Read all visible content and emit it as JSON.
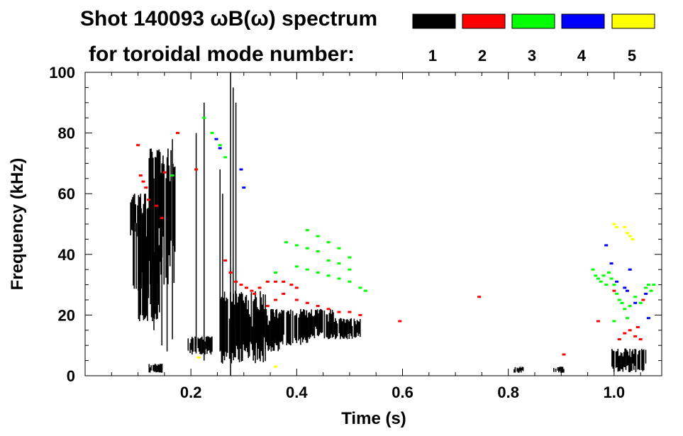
{
  "figure": {
    "title_line1": "Shot 140093 ωB(ω) spectrum",
    "title_line2": "for toroidal mode number:"
  },
  "colors": {
    "n1": "#000000",
    "n2": "#ff0000",
    "n3": "#00ff00",
    "n4": "#0000ff",
    "n5": "#ffff00",
    "axis": "#000000",
    "background": "#ffffff"
  },
  "chart_data": {
    "type": "heatmap",
    "title": "Shot 140093 ωB(ω) spectrum for toroidal mode number:",
    "xlabel": "Time (s)",
    "ylabel": "Frequency (kHz)",
    "xlim": [
      0.0,
      1.09
    ],
    "ylim": [
      0,
      100
    ],
    "xticks": [
      0.2,
      0.4,
      0.6,
      0.8,
      1.0
    ],
    "xtick_labels": [
      "0.2",
      "0.4",
      "0.6",
      "0.8",
      "1.0"
    ],
    "yticks": [
      0,
      20,
      40,
      60,
      80,
      100
    ],
    "ytick_labels": [
      "0",
      "20",
      "40",
      "60",
      "80",
      "100"
    ],
    "grid": false,
    "legend_position": "top-right",
    "legend": [
      {
        "label": "1",
        "color": "#000000"
      },
      {
        "label": "2",
        "color": "#ff0000"
      },
      {
        "label": "3",
        "color": "#00ff00"
      },
      {
        "label": "4",
        "color": "#0000ff"
      },
      {
        "label": "5",
        "color": "#ffff00"
      }
    ],
    "series": [
      {
        "name": "1",
        "color": "#000000",
        "blobs": [
          {
            "t": [
              0.085,
              0.115
            ],
            "f": [
              44,
              60
            ]
          },
          {
            "t": [
              0.09,
              0.12
            ],
            "f": [
              28,
              56
            ]
          },
          {
            "t": [
              0.1,
              0.14
            ],
            "f": [
              18,
              48
            ]
          },
          {
            "t": [
              0.12,
              0.17
            ],
            "f": [
              30,
              75
            ]
          },
          {
            "t": [
              0.19,
              0.24
            ],
            "f": [
              7,
              13
            ]
          },
          {
            "t": [
              0.255,
              0.34
            ],
            "f": [
              4,
              28
            ]
          },
          {
            "t": [
              0.3,
              0.37
            ],
            "f": [
              8,
              22
            ]
          },
          {
            "t": [
              0.35,
              0.42
            ],
            "f": [
              10,
              22
            ]
          },
          {
            "t": [
              0.41,
              0.47
            ],
            "f": [
              12,
              22
            ]
          },
          {
            "t": [
              0.47,
              0.52
            ],
            "f": [
              12,
              19
            ]
          },
          {
            "t": [
              0.12,
              0.145
            ],
            "f": [
              1,
              4
            ]
          },
          {
            "t": [
              0.81,
              0.83
            ],
            "f": [
              1,
              3
            ]
          },
          {
            "t": [
              0.885,
              0.905
            ],
            "f": [
              1,
              3
            ]
          },
          {
            "t": [
              0.995,
              1.06
            ],
            "f": [
              1,
              9
            ]
          }
        ],
        "lines": [
          {
            "t": 0.275,
            "f": [
              0,
              100
            ]
          },
          {
            "t": 0.28,
            "f": [
              10,
              95
            ]
          },
          {
            "t": 0.285,
            "f": [
              15,
              90
            ]
          },
          {
            "t": 0.21,
            "f": [
              10,
              80
            ]
          },
          {
            "t": 0.225,
            "f": [
              5,
              90
            ]
          },
          {
            "t": 0.255,
            "f": [
              8,
              68
            ]
          },
          {
            "t": 0.26,
            "f": [
              10,
              60
            ]
          },
          {
            "t": 0.145,
            "f": [
              10,
              70
            ]
          },
          {
            "t": 0.155,
            "f": [
              8,
              72
            ]
          },
          {
            "t": 0.165,
            "f": [
              12,
              78
            ]
          },
          {
            "t": 0.13,
            "f": [
              15,
              65
            ]
          },
          {
            "t": 0.105,
            "f": [
              20,
              60
            ]
          }
        ]
      },
      {
        "name": "2",
        "color": "#ff0000",
        "points": [
          [
            0.1,
            76
          ],
          [
            0.105,
            66
          ],
          [
            0.11,
            64
          ],
          [
            0.115,
            62
          ],
          [
            0.12,
            58
          ],
          [
            0.135,
            56
          ],
          [
            0.15,
            67
          ],
          [
            0.145,
            52
          ],
          [
            0.175,
            80
          ],
          [
            0.21,
            68
          ],
          [
            0.265,
            38
          ],
          [
            0.275,
            34
          ],
          [
            0.285,
            31
          ],
          [
            0.295,
            30
          ],
          [
            0.305,
            29
          ],
          [
            0.315,
            28
          ],
          [
            0.32,
            27
          ],
          [
            0.33,
            29
          ],
          [
            0.345,
            31
          ],
          [
            0.36,
            31
          ],
          [
            0.375,
            31
          ],
          [
            0.39,
            30
          ],
          [
            0.4,
            29
          ],
          [
            0.345,
            23
          ],
          [
            0.36,
            25
          ],
          [
            0.375,
            27
          ],
          [
            0.4,
            25
          ],
          [
            0.42,
            24
          ],
          [
            0.44,
            23
          ],
          [
            0.46,
            22
          ],
          [
            0.48,
            21
          ],
          [
            0.5,
            21
          ],
          [
            0.52,
            20
          ],
          [
            0.595,
            18
          ],
          [
            0.745,
            26
          ],
          [
            0.905,
            7
          ],
          [
            0.97,
            18
          ],
          [
            1.01,
            12
          ],
          [
            1.02,
            14
          ],
          [
            1.03,
            15
          ],
          [
            1.04,
            13
          ],
          [
            1.045,
            16
          ],
          [
            1.05,
            12
          ],
          [
            1.0,
            28
          ],
          [
            1.055,
            25
          ]
        ]
      },
      {
        "name": "3",
        "color": "#00ff00",
        "points": [
          [
            0.165,
            66
          ],
          [
            0.225,
            85
          ],
          [
            0.24,
            80
          ],
          [
            0.255,
            76
          ],
          [
            0.265,
            72
          ],
          [
            0.38,
            44
          ],
          [
            0.4,
            43
          ],
          [
            0.42,
            42
          ],
          [
            0.44,
            41
          ],
          [
            0.46,
            38
          ],
          [
            0.48,
            37
          ],
          [
            0.5,
            35
          ],
          [
            0.42,
            48
          ],
          [
            0.44,
            46
          ],
          [
            0.46,
            44
          ],
          [
            0.48,
            42
          ],
          [
            0.5,
            39
          ],
          [
            0.4,
            36
          ],
          [
            0.42,
            35
          ],
          [
            0.44,
            34
          ],
          [
            0.46,
            33
          ],
          [
            0.48,
            32
          ],
          [
            0.5,
            31
          ],
          [
            0.52,
            29
          ],
          [
            0.36,
            34
          ],
          [
            0.53,
            28
          ],
          [
            0.96,
            35
          ],
          [
            0.965,
            33
          ],
          [
            0.97,
            32
          ],
          [
            0.975,
            31
          ],
          [
            0.98,
            33
          ],
          [
            0.985,
            30
          ],
          [
            0.99,
            34
          ],
          [
            0.995,
            32
          ],
          [
            1.0,
            30
          ],
          [
            1.005,
            27
          ],
          [
            1.01,
            25
          ],
          [
            1.015,
            24
          ],
          [
            1.02,
            22
          ],
          [
            1.03,
            23
          ],
          [
            1.04,
            26
          ],
          [
            1.05,
            24
          ],
          [
            1.06,
            29
          ],
          [
            1.065,
            30
          ],
          [
            1.07,
            28
          ],
          [
            1.075,
            30
          ],
          [
            1.0,
            18
          ],
          [
            1.025,
            19
          ]
        ]
      },
      {
        "name": "4",
        "color": "#0000ff",
        "points": [
          [
            0.248,
            78
          ],
          [
            0.255,
            75
          ],
          [
            0.295,
            68
          ],
          [
            0.3,
            62
          ],
          [
            0.985,
            43
          ],
          [
            0.995,
            37
          ],
          [
            1.005,
            31
          ],
          [
            1.02,
            29
          ],
          [
            1.025,
            28
          ],
          [
            1.03,
            35
          ],
          [
            1.04,
            24
          ],
          [
            1.06,
            27
          ],
          [
            1.065,
            19
          ]
        ]
      },
      {
        "name": "5",
        "color": "#ffff00",
        "points": [
          [
            1.0,
            50
          ],
          [
            1.005,
            49
          ],
          [
            1.02,
            49
          ],
          [
            1.025,
            47
          ],
          [
            1.03,
            46
          ],
          [
            1.035,
            45
          ],
          [
            0.215,
            6
          ],
          [
            0.36,
            3
          ]
        ]
      }
    ]
  }
}
